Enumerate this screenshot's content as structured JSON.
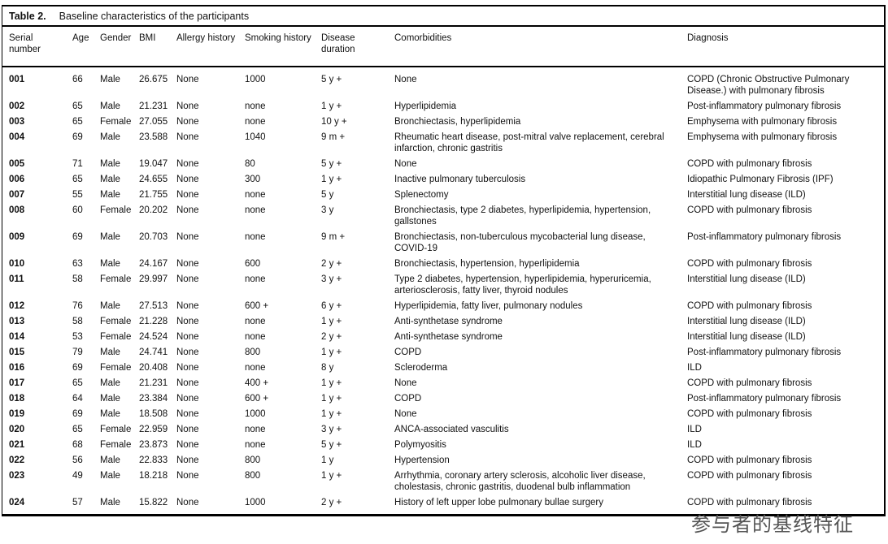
{
  "table": {
    "label": "Table 2.",
    "title": "Baseline characteristics of the participants",
    "headers": [
      "Serial number",
      "Age",
      "Gender",
      "BMI",
      "Allergy history",
      "Smoking history",
      "Disease duration",
      "Comorbidities",
      "Diagnosis"
    ],
    "rows": [
      [
        "001",
        "66",
        "Male",
        "26.675",
        "None",
        "1000",
        "5 y +",
        "None",
        "COPD (Chronic Obstructive Pulmonary Disease.) with pulmonary fibrosis"
      ],
      [
        "002",
        "65",
        "Male",
        "21.231",
        "None",
        "none",
        "1 y +",
        "Hyperlipidemia",
        "Post-inflammatory pulmonary fibrosis"
      ],
      [
        "003",
        "65",
        "Female",
        "27.055",
        "None",
        "none",
        "10 y +",
        "Bronchiectasis, hyperlipidemia",
        "Emphysema with pulmonary fibrosis"
      ],
      [
        "004",
        "69",
        "Male",
        "23.588",
        "None",
        "1040",
        "9 m +",
        "Rheumatic heart disease, post-mitral valve replacement, cerebral infarction, chronic gastritis",
        "Emphysema with pulmonary fibrosis"
      ],
      [
        "005",
        "71",
        "Male",
        "19.047",
        "None",
        "80",
        "5 y +",
        "None",
        "COPD with pulmonary fibrosis"
      ],
      [
        "006",
        "65",
        "Male",
        "24.655",
        "None",
        "300",
        "1 y +",
        "Inactive pulmonary tuberculosis",
        "Idiopathic Pulmonary Fibrosis (IPF)"
      ],
      [
        "007",
        "55",
        "Male",
        "21.755",
        "None",
        "none",
        "5 y",
        "Splenectomy",
        "Interstitial lung disease (ILD)"
      ],
      [
        "008",
        "60",
        "Female",
        "20.202",
        "None",
        "none",
        "3 y",
        "Bronchiectasis, type 2 diabetes, hyperlipidemia, hypertension, gallstones",
        "COPD with pulmonary fibrosis"
      ],
      [
        "009",
        "69",
        "Male",
        "20.703",
        "None",
        "none",
        "9 m +",
        "Bronchiectasis, non-tuberculous mycobacterial lung disease, COVID-19",
        "Post-inflammatory pulmonary fibrosis"
      ],
      [
        "010",
        "63",
        "Male",
        "24.167",
        "None",
        "600",
        "2 y +",
        "Bronchiectasis, hypertension, hyperlipidemia",
        "COPD with pulmonary fibrosis"
      ],
      [
        "011",
        "58",
        "Female",
        "29.997",
        "None",
        "none",
        "3 y +",
        "Type 2 diabetes, hypertension, hyperlipidemia, hyperuricemia, arteriosclerosis, fatty liver, thyroid nodules",
        "Interstitial lung disease (ILD)"
      ],
      [
        "012",
        "76",
        "Male",
        "27.513",
        "None",
        "600 +",
        "6 y +",
        "Hyperlipidemia, fatty liver, pulmonary nodules",
        "COPD with pulmonary fibrosis"
      ],
      [
        "013",
        "58",
        "Female",
        "21.228",
        "None",
        "none",
        "1 y +",
        "Anti-synthetase syndrome",
        "Interstitial lung disease (ILD)"
      ],
      [
        "014",
        "53",
        "Female",
        "24.524",
        "None",
        "none",
        "2 y +",
        "Anti-synthetase syndrome",
        "Interstitial lung disease (ILD)"
      ],
      [
        "015",
        "79",
        "Male",
        "24.741",
        "None",
        "800",
        "1 y +",
        "COPD",
        "Post-inflammatory pulmonary fibrosis"
      ],
      [
        "016",
        "69",
        "Female",
        "20.408",
        "None",
        "none",
        "8 y",
        "Scleroderma",
        "ILD"
      ],
      [
        "017",
        "65",
        "Male",
        "21.231",
        "None",
        "400 +",
        "1 y +",
        "None",
        "COPD with pulmonary fibrosis"
      ],
      [
        "018",
        "64",
        "Male",
        "23.384",
        "None",
        "600 +",
        "1 y +",
        "COPD",
        "Post-inflammatory pulmonary fibrosis"
      ],
      [
        "019",
        "69",
        "Male",
        "18.508",
        "None",
        "1000",
        "1 y +",
        "None",
        "COPD with pulmonary fibrosis"
      ],
      [
        "020",
        "65",
        "Female",
        "22.959",
        "None",
        "none",
        "3 y +",
        "ANCA-associated vasculitis",
        "ILD"
      ],
      [
        "021",
        "68",
        "Female",
        "23.873",
        "None",
        "none",
        "5 y +",
        "Polymyositis",
        "ILD"
      ],
      [
        "022",
        "56",
        "Male",
        "22.833",
        "None",
        "800",
        "1 y",
        "Hypertension",
        "COPD with pulmonary fibrosis"
      ],
      [
        "023",
        "49",
        "Male",
        "18.218",
        "None",
        "800",
        "1 y +",
        "Arrhythmia, coronary artery sclerosis, alcoholic liver disease, cholestasis, chronic gastritis, duodenal bulb inflammation",
        "COPD with pulmonary fibrosis"
      ],
      [
        "024",
        "57",
        "Male",
        "15.822",
        "None",
        "1000",
        "2 y +",
        "History of left upper lobe pulmonary bullae surgery",
        "COPD with pulmonary fibrosis"
      ]
    ]
  },
  "caption": {
    "text": "参与者的基线特征",
    "color": "#555555"
  },
  "colors": {
    "text": "#111111",
    "rule": "#000000",
    "background": "#ffffff"
  }
}
